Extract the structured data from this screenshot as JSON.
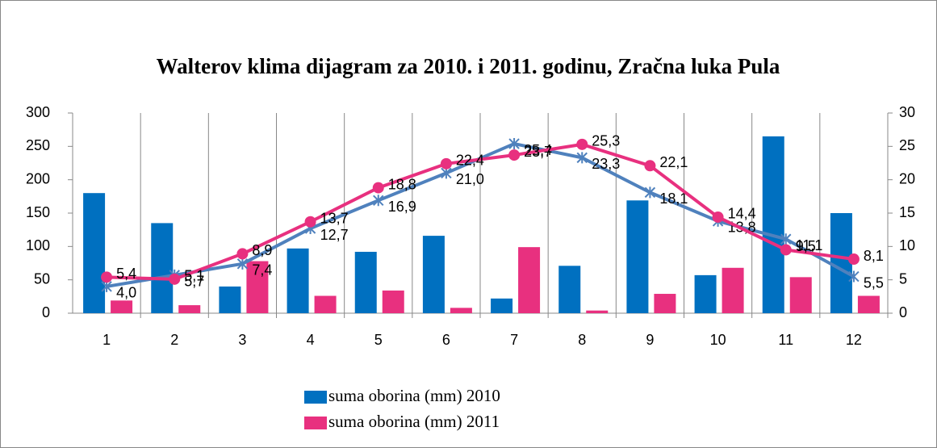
{
  "chart_data": {
    "type": "bar",
    "title": "Walterov klima dijagram za 2010. i 2011. godinu, Zračna luka Pula",
    "categories": [
      "1",
      "2",
      "3",
      "4",
      "5",
      "6",
      "7",
      "8",
      "9",
      "10",
      "11",
      "12"
    ],
    "ylim": [
      0,
      300
    ],
    "yticks": [
      0,
      50,
      100,
      150,
      200,
      250,
      300
    ],
    "y2lim": [
      0,
      30
    ],
    "y2ticks": [
      0,
      5,
      10,
      15,
      20,
      25,
      30
    ],
    "grid": true,
    "series": [
      {
        "name": "suma oborina (mm) 2010",
        "type": "bar",
        "color": "#0070c0",
        "values": [
          180,
          135,
          40,
          97,
          92,
          116,
          22,
          71,
          169,
          57,
          265,
          150
        ]
      },
      {
        "name": "suma oborina (mm) 2011",
        "type": "bar",
        "color": "#e8307f",
        "values": [
          19,
          12,
          78,
          26,
          34,
          8,
          99,
          4,
          29,
          68,
          54,
          26
        ]
      },
      {
        "type": "line",
        "axis": "y2",
        "color": "#4f81bd",
        "marker": "x",
        "values": [
          4.0,
          5.7,
          7.4,
          12.7,
          16.9,
          21.0,
          25.4,
          23.3,
          18.1,
          13.8,
          11.1,
          5.5
        ],
        "value_labels": [
          "4,0",
          "5,7",
          "7,4",
          "12,7",
          "16,9",
          "21,0",
          "25,4",
          "23,3",
          "18,1",
          "13,8",
          "11,1",
          "5,5"
        ]
      },
      {
        "type": "line",
        "axis": "y2",
        "color": "#e8307f",
        "marker": "circle",
        "values": [
          5.4,
          5.1,
          8.9,
          13.7,
          18.8,
          22.4,
          23.7,
          25.3,
          22.1,
          14.4,
          9.5,
          8.1
        ],
        "value_labels": [
          "5,4",
          "5,1",
          "8,9",
          "13,7",
          "18,8",
          "22,4",
          "23,7",
          "25,3",
          "22,1",
          "14,4",
          "9,5",
          "8,1"
        ]
      }
    ]
  }
}
